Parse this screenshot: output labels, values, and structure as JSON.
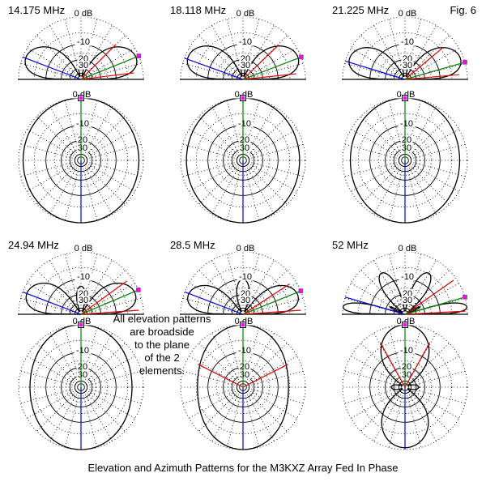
{
  "header": {
    "fig_label": "Fig. 6"
  },
  "note": {
    "text": "All elevation patterns\nare broadside\nto the plane\nof the 2\nelements."
  },
  "caption": {
    "text": "Elevation and Azimuth Patterns for the M3KXZ Array Fed In Phase"
  },
  "chart_data": {
    "type": "polar",
    "title": "Elevation and Azimuth Patterns for the M3KXZ Array Fed In Phase",
    "ring_labels": [
      "0 dB",
      "-10",
      "20",
      "30"
    ],
    "ring_db": [
      0,
      -10,
      -20,
      -30
    ],
    "grid": {
      "spoke_step_deg": 15,
      "dotted_rings_db": [
        0,
        -5,
        -15,
        -25
      ],
      "solid_rings_db": [
        -10,
        -20,
        -30,
        -40,
        -50
      ]
    },
    "colors": {
      "pattern": "#000000",
      "max_gain_line": "#008000",
      "rear_line": "#0000e0",
      "beamwidth_line": "#e00000",
      "cursor": "#ff00ff"
    },
    "panels": [
      {
        "freq": "14.175 MHz",
        "elevation": {
          "green_deg": 22,
          "blue_deg": 159,
          "red": [
            {
              "deg": 45,
              "len": 0.79
            },
            {
              "deg": 7,
              "len": 0.85
            }
          ],
          "lobes": [
            {
              "from": 0,
              "to": 63,
              "R": 0.95,
              "p": 0.5,
              "s": 0.66
            },
            {
              "from": 117,
              "to": 180,
              "R": 0.95,
              "p": 0.5,
              "s": 0.66,
              "m": 1
            },
            {
              "from": 73,
              "to": 107,
              "R": 0.4,
              "p": 0.9
            }
          ]
        },
        "azimuth": {
          "side_db": -1.3,
          "green_deg": 0,
          "blue_deg": 180,
          "red": []
        }
      },
      {
        "freq": "18.118 MHz",
        "elevation": {
          "green_deg": 21,
          "blue_deg": 160,
          "red": [
            {
              "deg": 44,
              "len": 0.79
            },
            {
              "deg": 6,
              "len": 0.86
            }
          ],
          "lobes": [
            {
              "from": 0,
              "to": 65,
              "R": 0.95,
              "p": 0.5,
              "s": 0.66
            },
            {
              "from": 115,
              "to": 180,
              "R": 0.95,
              "p": 0.5,
              "s": 0.66,
              "m": 1
            },
            {
              "from": 75,
              "to": 105,
              "R": 0.38,
              "p": 0.9
            }
          ]
        },
        "azimuth": {
          "side_db": -1.7,
          "green_deg": 0,
          "blue_deg": 180,
          "red": []
        }
      },
      {
        "freq": "21.225 MHz",
        "elevation": {
          "green_deg": 16,
          "blue_deg": 163,
          "red": [
            {
              "deg": 40,
              "len": 0.8
            },
            {
              "deg": 5,
              "len": 0.87
            }
          ],
          "lobes": [
            {
              "from": 0,
              "to": 60,
              "R": 0.95,
              "p": 0.48,
              "s": 0.68
            },
            {
              "from": 120,
              "to": 180,
              "R": 0.95,
              "p": 0.48,
              "s": 0.68,
              "m": 1
            },
            {
              "from": 74,
              "to": 106,
              "R": 0.37,
              "p": 0.9
            }
          ]
        },
        "azimuth": {
          "side_db": -2.3,
          "green_deg": 0,
          "blue_deg": 180,
          "red": []
        }
      },
      {
        "freq": "24.94 MHz",
        "elevation": {
          "green_deg": 23,
          "blue_deg": 159,
          "red": [
            {
              "deg": 36,
              "len": 0.91
            },
            {
              "deg": 4,
              "len": 0.93
            }
          ],
          "lobes": [
            {
              "from": 0,
              "to": 57,
              "R": 0.93,
              "p": 0.4,
              "s": 0.7
            },
            {
              "from": 123,
              "to": 180,
              "R": 0.93,
              "p": 0.4,
              "s": 0.7,
              "m": 1
            },
            {
              "from": 66,
              "to": 114,
              "R": 0.45,
              "p": 0.9
            }
          ]
        },
        "azimuth": {
          "side_db": -3.5,
          "green_deg": 0,
          "blue_deg": 180,
          "red": []
        }
      },
      {
        "freq": "28.5 MHz",
        "elevation": {
          "green_deg": 22,
          "blue_deg": 159,
          "red": [
            {
              "deg": 33,
              "len": 0.89
            },
            {
              "deg": 4,
              "len": 0.93
            }
          ],
          "lobes": [
            {
              "from": 0,
              "to": 52,
              "R": 0.93,
              "p": 0.4,
              "s": 0.7
            },
            {
              "from": 128,
              "to": 180,
              "R": 0.93,
              "p": 0.4,
              "s": 0.7,
              "m": 1
            },
            {
              "from": 62,
              "to": 118,
              "R": 0.56,
              "p": 0.9
            }
          ]
        },
        "azimuth": {
          "side_db": -5.5,
          "green_deg": 0,
          "blue_deg": 180,
          "red": [
            {
              "deg": 63,
              "len": 0.81
            },
            {
              "deg": -63,
              "len": 0.81
            }
          ]
        }
      },
      {
        "freq": "52 MHz",
        "elevation": {
          "green_deg": 16,
          "blue_deg": 164,
          "red": [
            {
              "deg": 35,
              "len": 0.95
            },
            {
              "deg": 3,
              "len": 0.97
            }
          ],
          "lobes": [
            {
              "from": 0,
              "to": 17,
              "R": 1.0,
              "p": 0.35,
              "s": 0.75
            },
            {
              "from": 163,
              "to": 180,
              "R": 1.0,
              "p": 0.35,
              "s": 0.75,
              "m": 1
            },
            {
              "from": 19,
              "to": 33,
              "R": 0.27,
              "p": 1
            },
            {
              "from": 147,
              "to": 161,
              "R": 0.27,
              "p": 1
            },
            {
              "from": 38,
              "to": 82,
              "R": 0.76,
              "p": 0.8
            },
            {
              "from": 98,
              "to": 142,
              "R": 0.76,
              "p": 0.8
            }
          ]
        },
        "azimuth": {
          "green_deg": 0,
          "blue_deg": 180,
          "red": [
            {
              "deg": 29,
              "len": 0.82
            },
            {
              "deg": -29,
              "len": 0.82
            }
          ],
          "lobes": [
            {
              "from": 305,
              "to": 415,
              "R": 1.0,
              "p": 0.65
            },
            {
              "from": 62,
              "to": 118,
              "R": 0.22,
              "p": 1
            },
            {
              "from": 125,
              "to": 235,
              "R": 0.97,
              "p": 0.65
            },
            {
              "from": 242,
              "to": 298,
              "R": 0.22,
              "p": 1
            }
          ]
        }
      }
    ]
  }
}
